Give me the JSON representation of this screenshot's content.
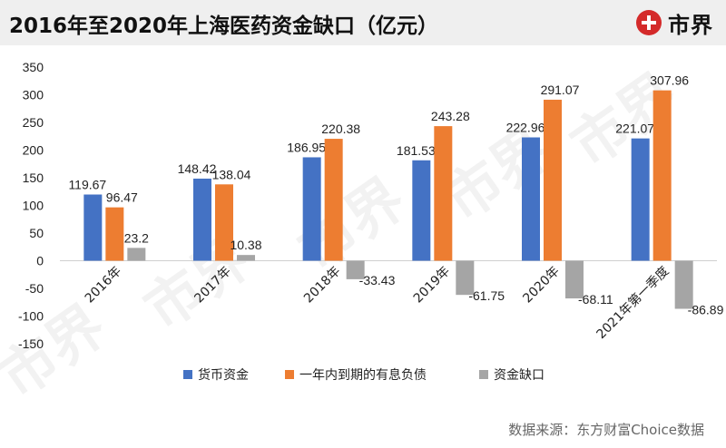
{
  "header": {
    "title": "2016年至2020年上海医药资金缺口（亿元）",
    "brand": "市界"
  },
  "footer": {
    "source": "数据来源：东方财富Choice数据"
  },
  "watermark": {
    "text": "市界"
  },
  "colors": {
    "series": [
      "#4472C4",
      "#ED7D31",
      "#A5A5A5"
    ],
    "background": "#ffffff",
    "title_bar": "#efefef"
  },
  "chart_data": {
    "type": "bar",
    "title": "2016年至2020年上海医药资金缺口（亿元）",
    "categories": [
      "2016年",
      "2017年",
      "2018年",
      "2019年",
      "2020年",
      "2021年第一季度"
    ],
    "series": [
      {
        "name": "货币资金",
        "values": [
          119.67,
          148.42,
          186.95,
          181.53,
          222.96,
          221.07
        ],
        "labels": [
          "119.67",
          "148.42",
          "186.95",
          "181.53",
          "222.96",
          "221.07"
        ]
      },
      {
        "name": "一年内到期的有息负债",
        "values": [
          96.47,
          138.04,
          220.38,
          243.28,
          291.07,
          307.96
        ],
        "labels": [
          "96.47",
          "138.04",
          "220.38",
          "243.28",
          "291.07",
          "307.96"
        ]
      },
      {
        "name": "资金缺口",
        "values": [
          23.2,
          10.38,
          -33.43,
          -61.75,
          -68.11,
          -86.89
        ],
        "labels": [
          "23.2",
          "10.38",
          "-33.43",
          "-61.75",
          "-68.11",
          "-86.89"
        ]
      }
    ],
    "ylim": [
      -150,
      350
    ],
    "yticks": [
      -150,
      -100,
      -50,
      0,
      50,
      100,
      150,
      200,
      250,
      300,
      350
    ],
    "legend_position": "bottom",
    "grid": false
  }
}
